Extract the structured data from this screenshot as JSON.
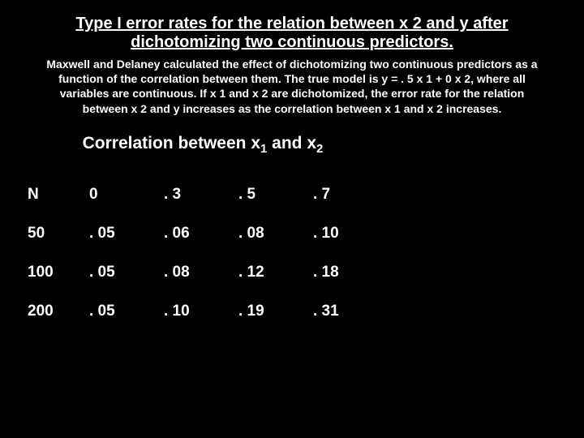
{
  "title": "Type I error rates for the relation between x 2 and y after dichotomizing two continuous predictors.",
  "description": "Maxwell and Delaney calculated the effect of dichotomizing two continuous predictors as a function of the correlation between them.  The true model is y = . 5 x 1 + 0 x 2, where all variables are continuous.  If x 1 and x 2 are dichotomized, the error rate for the relation between x 2 and y increases as the correlation between x 1 and x 2 increases.",
  "subheading_pre": "Correlation between x",
  "subheading_sub1": "1",
  "subheading_mid": " and x",
  "subheading_sub2": "2",
  "table": {
    "columns": [
      "N",
      "0",
      ". 3",
      ". 5",
      ". 7"
    ],
    "rows": [
      [
        "50",
        ". 05",
        ". 06",
        ". 08",
        ". 10"
      ],
      [
        "100",
        ". 05",
        ". 08",
        ". 12",
        ". 18"
      ],
      [
        "200",
        ". 05",
        ". 10",
        ". 19",
        ". 31"
      ]
    ]
  },
  "colors": {
    "background": "#000000",
    "text": "#ffffff"
  }
}
